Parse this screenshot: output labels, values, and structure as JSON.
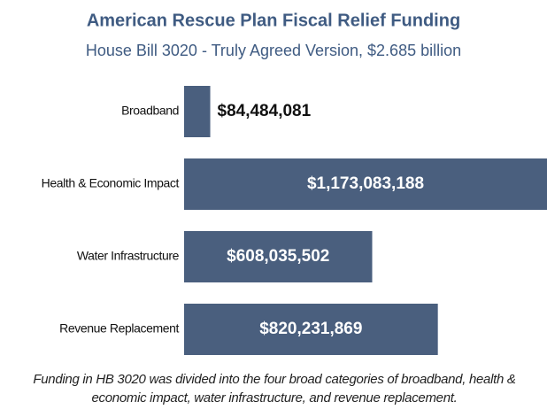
{
  "chart_data": {
    "type": "hbar",
    "title": "American Rescue Plan Fiscal Relief Funding",
    "subtitle": "House Bill 3020 - Truly Agreed Version, $2.685 billion",
    "categories": [
      "Broadband",
      "Health & Economic Impact",
      "Water Infrastructure",
      "Revenue Replacement"
    ],
    "values": [
      84484081,
      1173083188,
      608035502,
      820231869
    ],
    "value_labels": [
      "$84,484,081",
      "$1,173,083,188",
      "$608,035,502",
      "$820,231,869"
    ],
    "color": "#4a5f7e",
    "footnote": "Funding in HB 3020 was divided into the four broad categories of broadband, health & economic impact, water infrastructure, and revenue replacement."
  }
}
